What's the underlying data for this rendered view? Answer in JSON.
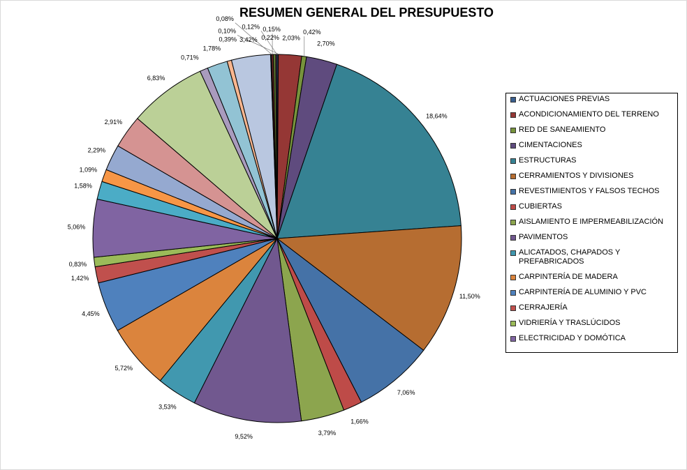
{
  "chart_data": {
    "type": "pie",
    "title": "RESUMEN GENERAL DEL PRESUPUESTO",
    "legend_position": "right",
    "slices": [
      {
        "name": "ACTUACIONES PREVIAS",
        "value": 0.1,
        "label": "0,10%",
        "color": "#3A5F8F"
      },
      {
        "name": "ACONDICIONAMIENTO DEL TERRENO",
        "value": 2.03,
        "label": "2,03%",
        "color": "#953735"
      },
      {
        "name": "RED DE SANEAMIENTO",
        "value": 0.42,
        "label": "0,42%",
        "color": "#77933C"
      },
      {
        "name": "CIMENTACIONES",
        "value": 2.7,
        "label": "2,70%",
        "color": "#5F4B7E"
      },
      {
        "name": "ESTRUCTURAS",
        "value": 18.64,
        "label": "18,64%",
        "color": "#368293"
      },
      {
        "name": "CERRAMIENTOS Y DIVISIONES",
        "value": 11.5,
        "label": "11,50%",
        "color": "#B66D31"
      },
      {
        "name": "REVESTIMIENTOS Y FALSOS TECHOS",
        "value": 7.06,
        "label": "7,06%",
        "color": "#4572A7"
      },
      {
        "name": "CUBIERTAS",
        "value": 1.66,
        "label": "1,66%",
        "color": "#BE4B48"
      },
      {
        "name": "AISLAMIENTO E IMPERMEABILIZACIÓN",
        "value": 3.79,
        "label": "3,79%",
        "color": "#8CA54E"
      },
      {
        "name": "PAVIMENTOS",
        "value": 9.52,
        "label": "9,52%",
        "color": "#71588F"
      },
      {
        "name": "ALICATADOS, CHAPADOS Y PREFABRICADOS",
        "value": 3.53,
        "label": "3,53%",
        "color": "#4198AF"
      },
      {
        "name": "CARPINTERÍA DE MADERA",
        "value": 5.72,
        "label": "5,72%",
        "color": "#DB843D"
      },
      {
        "name": "CARPINTERÍA DE ALUMINIO Y PVC",
        "value": 4.45,
        "label": "4,45%",
        "color": "#4F81BD"
      },
      {
        "name": "CERRAJERÍA",
        "value": 1.42,
        "label": "1,42%",
        "color": "#C0504D"
      },
      {
        "name": "VIDRIERÍA Y TRASLÚCIDOS",
        "value": 0.83,
        "label": "0,83%",
        "color": "#9BBB59"
      },
      {
        "name": "ELECTRICIDAD Y DOMÓTICA",
        "value": 5.06,
        "label": "5,06%",
        "color": "#8064A2"
      },
      {
        "name": "",
        "value": 1.58,
        "label": "1,58%",
        "color": "#4BACC6"
      },
      {
        "name": "",
        "value": 1.09,
        "label": "1,09%",
        "color": "#F79646"
      },
      {
        "name": "",
        "value": 2.29,
        "label": "2,29%",
        "color": "#95A9D0"
      },
      {
        "name": "",
        "value": 2.91,
        "label": "2,91%",
        "color": "#D59392"
      },
      {
        "name": "",
        "value": 6.83,
        "label": "6,83%",
        "color": "#BBD097"
      },
      {
        "name": "",
        "value": 0.71,
        "label": "0,71%",
        "color": "#A99BBD"
      },
      {
        "name": "",
        "value": 1.78,
        "label": "1,78%",
        "color": "#92C3D4"
      },
      {
        "name": "",
        "value": 0.39,
        "label": "0,39%",
        "color": "#F9B68F"
      },
      {
        "name": "",
        "value": 3.42,
        "label": "3,42%",
        "color": "#B9C7E0"
      },
      {
        "name": "",
        "value": 0.08,
        "label": "0,08%",
        "color": "#2C4D75"
      },
      {
        "name": "",
        "value": 0.15,
        "label": "0,15%",
        "color": "#772C2A"
      },
      {
        "name": "",
        "value": 0.22,
        "label": "0,22%",
        "color": "#5F7530"
      },
      {
        "name": "",
        "value": 0.12,
        "label": "0,12%",
        "color": "#4D3B62"
      }
    ]
  }
}
